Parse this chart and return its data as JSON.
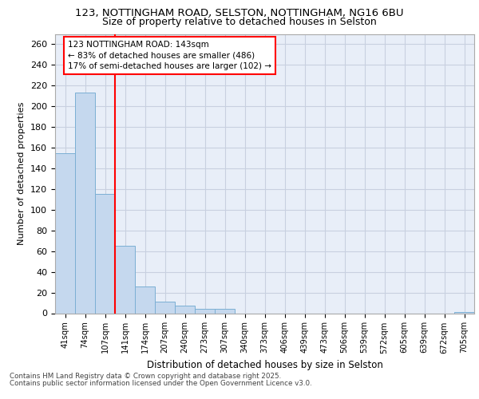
{
  "title_line1": "123, NOTTINGHAM ROAD, SELSTON, NOTTINGHAM, NG16 6BU",
  "title_line2": "Size of property relative to detached houses in Selston",
  "xlabel": "Distribution of detached houses by size in Selston",
  "ylabel": "Number of detached properties",
  "categories": [
    "41sqm",
    "74sqm",
    "107sqm",
    "141sqm",
    "174sqm",
    "207sqm",
    "240sqm",
    "273sqm",
    "307sqm",
    "340sqm",
    "373sqm",
    "406sqm",
    "439sqm",
    "473sqm",
    "506sqm",
    "539sqm",
    "572sqm",
    "605sqm",
    "639sqm",
    "672sqm",
    "705sqm"
  ],
  "values": [
    155,
    213,
    115,
    65,
    26,
    11,
    7,
    4,
    4,
    0,
    0,
    0,
    0,
    0,
    0,
    0,
    0,
    0,
    0,
    0,
    1
  ],
  "bar_color": "#c5d8ee",
  "bar_edge_color": "#7bafd4",
  "bar_width": 1.0,
  "grid_color": "#c8d0e0",
  "background_color": "#e8eef8",
  "red_line_x": 2.5,
  "annotation_text": "123 NOTTINGHAM ROAD: 143sqm\n← 83% of detached houses are smaller (486)\n17% of semi-detached houses are larger (102) →",
  "footer_line1": "Contains HM Land Registry data © Crown copyright and database right 2025.",
  "footer_line2": "Contains public sector information licensed under the Open Government Licence v3.0.",
  "ylim": [
    0,
    270
  ],
  "yticks": [
    0,
    20,
    40,
    60,
    80,
    100,
    120,
    140,
    160,
    180,
    200,
    220,
    240,
    260
  ]
}
